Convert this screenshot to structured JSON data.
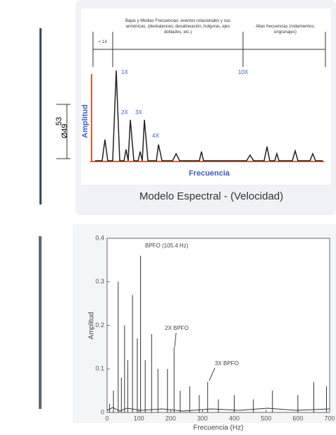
{
  "left_drawing": {
    "dimension_outer": "53",
    "dimension_inner": "Ø49"
  },
  "top_figure": {
    "ranges": {
      "low": "< 1X",
      "mid": "Bajas y Medias Frecuencias: eventos rotacionales y sus armónicas, (desbalanceo, desalineación, holguras, ejes doblados, etc.)",
      "high": "Altas frecuencias (rodamientos, engranajes)"
    },
    "peak_labels": [
      "1X",
      "2X",
      "3X",
      "4X",
      "10X"
    ],
    "y_label": "Amplitud",
    "x_label": "Frecuencia",
    "caption": "Modelo Espectral - (Velocidad)"
  },
  "bottom_figure": {
    "type": "stem",
    "x_label": "Frecuencia (Hz)",
    "y_label": "Amplitud",
    "xlim": [
      0,
      700
    ],
    "ylim": [
      0,
      0.4
    ],
    "xticks": [
      0,
      100,
      200,
      300,
      400,
      500,
      600,
      700
    ],
    "yticks": [
      0,
      0.1,
      0.2,
      0.3,
      0.4
    ],
    "annotations": [
      "BPFO (105.4 Hz)",
      "2X BPFO",
      "3X BPFO"
    ],
    "x": [
      8,
      20,
      35,
      45,
      55,
      65,
      80,
      95,
      105.4,
      120,
      140,
      160,
      190,
      210.8,
      230,
      260,
      290,
      316.2,
      350,
      400,
      460,
      520,
      600,
      650,
      690
    ],
    "values": [
      0.02,
      0.05,
      0.3,
      0.08,
      0.2,
      0.12,
      0.27,
      0.17,
      0.36,
      0.12,
      0.18,
      0.1,
      0.1,
      0.15,
      0.05,
      0.06,
      0.04,
      0.07,
      0.03,
      0.04,
      0.03,
      0.05,
      0.04,
      0.07,
      0.06
    ],
    "color": "#333333"
  }
}
